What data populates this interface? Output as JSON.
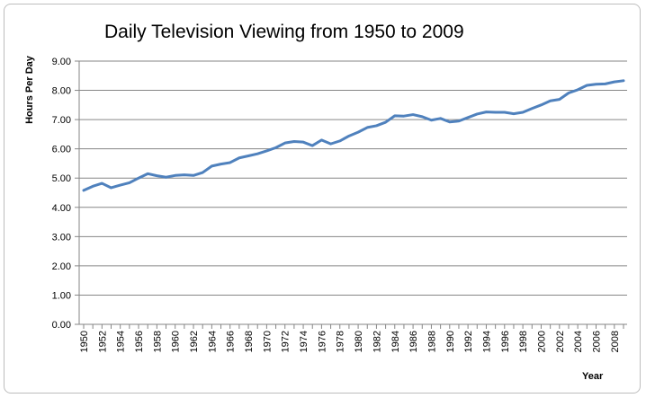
{
  "chart_data": {
    "type": "line",
    "title": "Daily Television Viewing from 1950 to 2009",
    "xlabel": "Year",
    "ylabel": "Hours Per Day",
    "ylim": [
      0,
      9
    ],
    "y_ticks": [
      "0.00",
      "1.00",
      "2.00",
      "3.00",
      "4.00",
      "5.00",
      "6.00",
      "7.00",
      "8.00",
      "9.00"
    ],
    "x_tick_labels": [
      "1950",
      "1952",
      "1954",
      "1956",
      "1958",
      "1960",
      "1962",
      "1964",
      "1966",
      "1968",
      "1970",
      "1972",
      "1974",
      "1976",
      "1978",
      "1980",
      "1982",
      "1984",
      "1986",
      "1988",
      "1990",
      "1992",
      "1994",
      "1996",
      "1998",
      "2000",
      "2002",
      "2004",
      "2006",
      "2008"
    ],
    "grid": "horizontal",
    "legend": "none",
    "series_color": "#4f81bd",
    "x": [
      1950,
      1951,
      1952,
      1953,
      1954,
      1955,
      1956,
      1957,
      1958,
      1959,
      1960,
      1961,
      1962,
      1963,
      1964,
      1965,
      1966,
      1967,
      1968,
      1969,
      1970,
      1971,
      1972,
      1973,
      1974,
      1975,
      1976,
      1977,
      1978,
      1979,
      1980,
      1981,
      1982,
      1983,
      1984,
      1985,
      1986,
      1987,
      1988,
      1989,
      1990,
      1991,
      1992,
      1993,
      1994,
      1995,
      1996,
      1997,
      1998,
      1999,
      2000,
      2001,
      2002,
      2003,
      2004,
      2005,
      2006,
      2007,
      2008,
      2009
    ],
    "series": [
      {
        "values": [
          4.58,
          4.72,
          4.82,
          4.67,
          4.76,
          4.84,
          5.0,
          5.15,
          5.08,
          5.03,
          5.09,
          5.11,
          5.09,
          5.19,
          5.41,
          5.48,
          5.53,
          5.69,
          5.76,
          5.83,
          5.93,
          6.04,
          6.2,
          6.25,
          6.23,
          6.11,
          6.3,
          6.17,
          6.27,
          6.44,
          6.57,
          6.73,
          6.79,
          6.91,
          7.13,
          7.12,
          7.17,
          7.1,
          6.98,
          7.04,
          6.92,
          6.95,
          7.07,
          7.19,
          7.26,
          7.25,
          7.25,
          7.2,
          7.25,
          7.38,
          7.5,
          7.64,
          7.69,
          7.91,
          8.02,
          8.17,
          8.21,
          8.22,
          8.29,
          8.33
        ]
      }
    ]
  }
}
